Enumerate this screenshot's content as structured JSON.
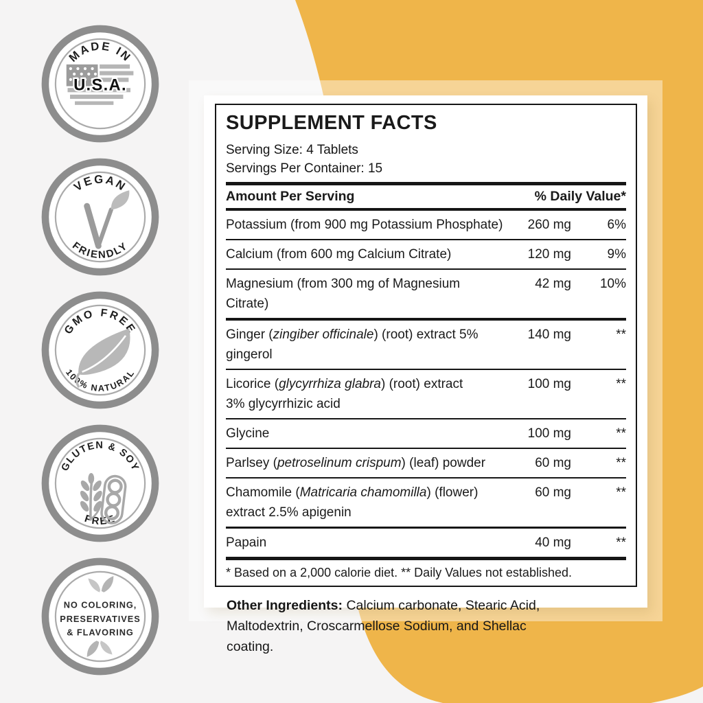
{
  "colors": {
    "accent_yellow": "#EFB54A",
    "background_gray": "#F5F4F4",
    "badge_ring_gray": "#8D8D8D",
    "text_dark": "#1A1A1A"
  },
  "badges": [
    {
      "id": "made-in-usa",
      "top_text": "MADE IN",
      "center_text": "U.S.A.",
      "icon": "usa-flag-map-icon"
    },
    {
      "id": "vegan-friendly",
      "top_text": "VEGAN",
      "bottom_text": "FRIENDLY",
      "icon": "vegan-v-leaf-icon"
    },
    {
      "id": "gmo-free",
      "top_text": "GMO FREE",
      "bottom_text": "100% NATURAL",
      "icon": "leaf-icon"
    },
    {
      "id": "gluten-soy-free",
      "top_text": "GLUTEN & SOY",
      "bottom_text": "FREE",
      "icon": "wheat-soy-pod-icon"
    },
    {
      "id": "no-additives",
      "lines": [
        "NO COLORING,",
        "PRESERVATIVES",
        "& FLAVORING"
      ],
      "icon": "leaves-icon"
    }
  ],
  "panel": {
    "title": "SUPPLEMENT FACTS",
    "serving_size": "Serving Size: 4 Tablets",
    "servings_per_container": "Servings Per Container: 15",
    "columns": {
      "amount": "Amount Per Serving",
      "dv": "% Daily Value*"
    },
    "rows": [
      {
        "name": [
          [
            "Potassium (from 900 mg Potassium Phosphate)"
          ]
        ],
        "amount": "260 mg",
        "dv": "6%",
        "sep_after": "d2"
      },
      {
        "name": [
          [
            "Calcium (from 600 mg Calcium Citrate)"
          ]
        ],
        "amount": "120 mg",
        "dv": "9%",
        "sep_after": "d2"
      },
      {
        "name": [
          [
            "Magnesium (from 300 mg of Magnesium Citrate)"
          ]
        ],
        "amount": "42 mg",
        "dv": "10%",
        "sep_after": "d4"
      },
      {
        "name": [
          [
            "Ginger ("
          ],
          [
            "zingiber officinale",
            "i"
          ],
          [
            ") (root) extract 5% gingerol"
          ]
        ],
        "amount": "140 mg",
        "dv": "**",
        "sep_after": "d2"
      },
      {
        "name": [
          [
            "Licorice ("
          ],
          [
            "glycyrrhiza glabra",
            "i"
          ],
          [
            ") (root) extract"
          ]
        ],
        "name2": "3% glycyrrhizic acid",
        "amount": "100 mg",
        "dv": "**",
        "sep_after": "d2"
      },
      {
        "name": [
          [
            "Glycine"
          ]
        ],
        "amount": "100 mg",
        "dv": "**",
        "sep_after": "d2"
      },
      {
        "name": [
          [
            "Parlsey ("
          ],
          [
            "petroselinum crispum",
            "i"
          ],
          [
            ") (leaf) powder"
          ]
        ],
        "amount": "60 mg",
        "dv": "**",
        "sep_after": "d2"
      },
      {
        "name": [
          [
            "Chamomile ("
          ],
          [
            "Matricaria chamomilla",
            "i"
          ],
          [
            ") (flower)"
          ]
        ],
        "name2": "extract 2.5% apigenin",
        "amount": "60 mg",
        "dv": "**",
        "sep_after": "d3"
      },
      {
        "name": [
          [
            "Papain"
          ]
        ],
        "amount": "40 mg",
        "dv": "**",
        "sep_after": "d5"
      }
    ],
    "footnote": "* Based on a 2,000 calorie diet. ** Daily Values not established.",
    "other_ingredients_label": "Other Ingredients:",
    "other_ingredients_text": " Calcium carbonate, Stearic Acid, Maltodextrin, Croscarmellose Sodium, and Shellac coating."
  }
}
